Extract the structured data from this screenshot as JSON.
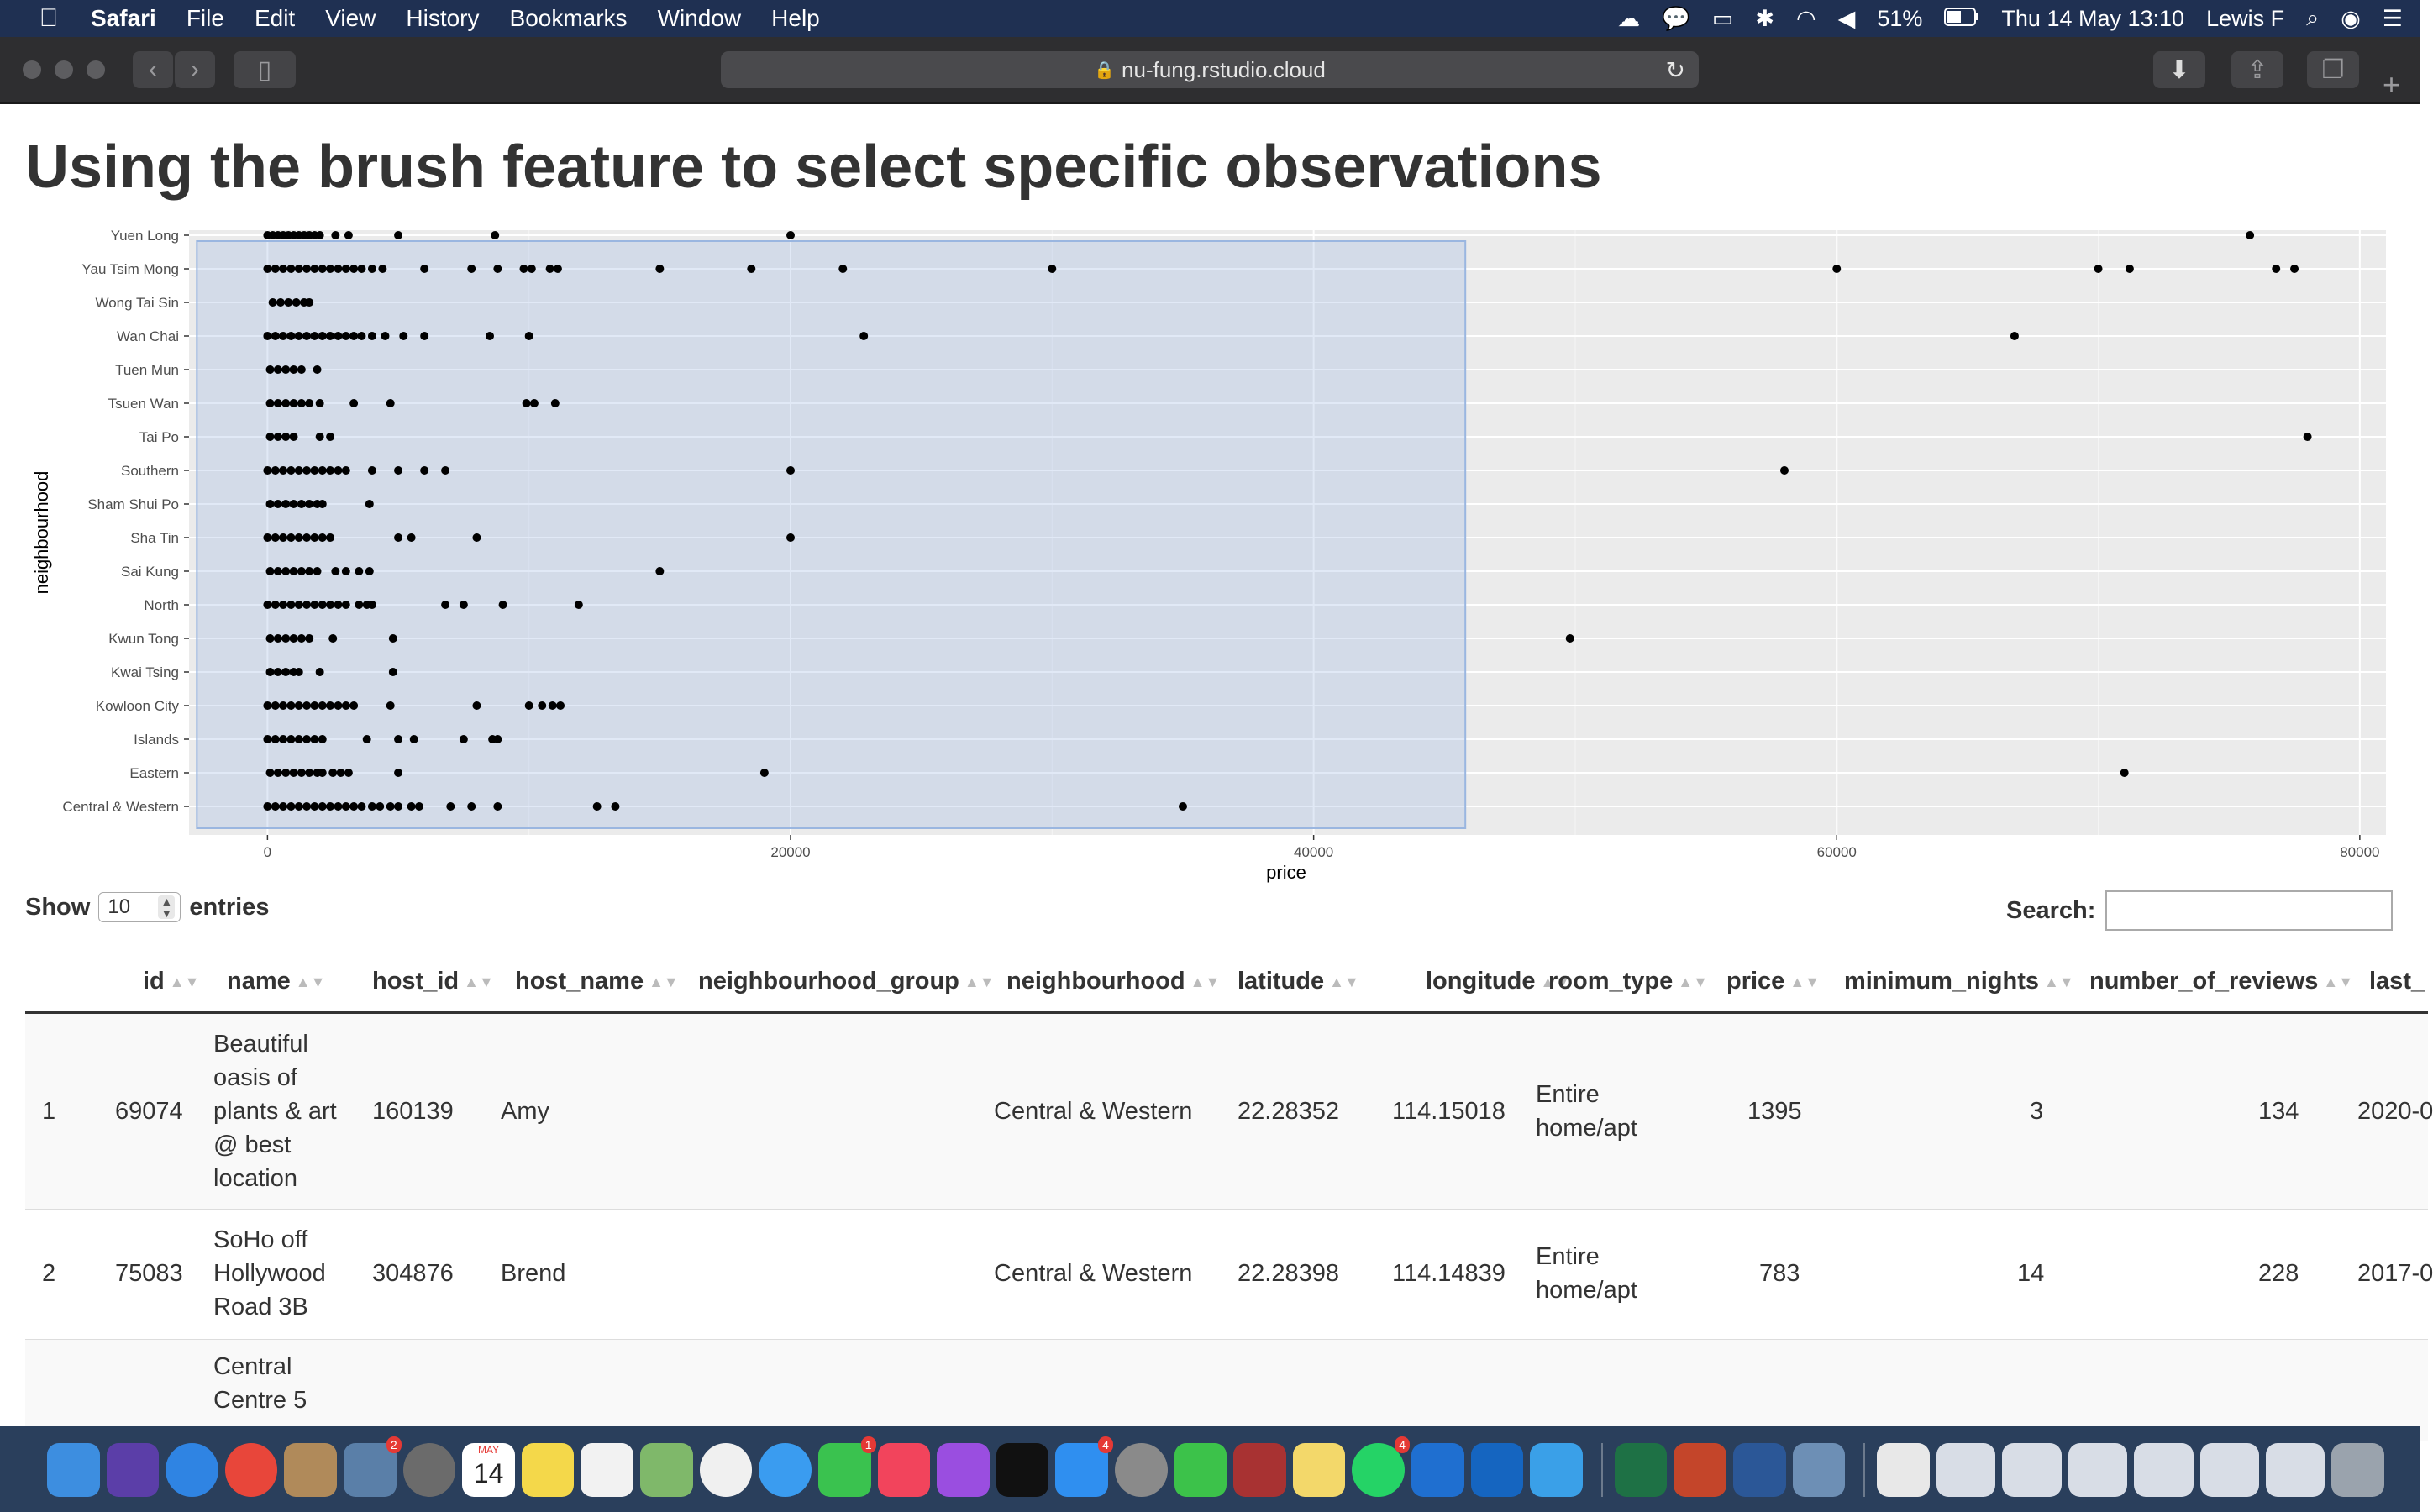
{
  "menubar": {
    "app": "Safari",
    "menus": [
      "File",
      "Edit",
      "View",
      "History",
      "Bookmarks",
      "Window",
      "Help"
    ],
    "battery": "51%",
    "datetime": "Thu 14 May  13:10",
    "user": "Lewis F"
  },
  "browser": {
    "url": "nu-fung.rstudio.cloud"
  },
  "page": {
    "title": "Using the brush feature to select specific observations"
  },
  "chart_data": {
    "type": "scatter",
    "xlabel": "price",
    "ylabel": "neighbourhood",
    "xlim": [
      -3000,
      81000
    ],
    "xticks": [
      0,
      20000,
      40000,
      60000,
      80000
    ],
    "grid": true,
    "brush_selection": {
      "x": [
        -2700,
        45800
      ],
      "y": [
        "Central & Western",
        "Yuen Long"
      ]
    },
    "categories": [
      "Central & Western",
      "Eastern",
      "Islands",
      "Kowloon City",
      "Kwai Tsing",
      "Kwun Tong",
      "North",
      "Sai Kung",
      "Sha Tin",
      "Sham Shui Po",
      "Southern",
      "Tai Po",
      "Tsuen Wan",
      "Tuen Mun",
      "Wan Chai",
      "Wong Tai Sin",
      "Yau Tsim Mong",
      "Yuen Long"
    ],
    "points": {
      "Yuen Long": [
        0,
        200,
        400,
        600,
        800,
        1000,
        1200,
        1400,
        1600,
        1800,
        2000,
        2600,
        3100,
        5000,
        8700,
        20000,
        75800
      ],
      "Yau Tsim Mong": [
        0,
        300,
        600,
        900,
        1200,
        1500,
        1800,
        2100,
        2400,
        2700,
        3000,
        3300,
        3600,
        4000,
        4400,
        6000,
        7800,
        8800,
        9800,
        10100,
        10800,
        11100,
        15000,
        18500,
        22000,
        30000,
        60000,
        70000,
        71200,
        76800,
        77500
      ],
      "Wong Tai Sin": [
        200,
        500,
        800,
        1100,
        1400,
        1600
      ],
      "Wan Chai": [
        0,
        300,
        600,
        900,
        1200,
        1500,
        1800,
        2100,
        2400,
        2700,
        3000,
        3300,
        3600,
        4000,
        4500,
        5200,
        6000,
        8500,
        10000,
        22800,
        66800
      ],
      "Tuen Mun": [
        100,
        400,
        700,
        1000,
        1300,
        1900
      ],
      "Tsuen Wan": [
        100,
        400,
        700,
        1000,
        1300,
        1600,
        2000,
        3300,
        4700,
        9900,
        10200,
        11000
      ],
      "Tai Po": [
        100,
        400,
        700,
        1000,
        2000,
        2400,
        78000
      ],
      "Southern": [
        0,
        300,
        600,
        900,
        1200,
        1500,
        1800,
        2100,
        2400,
        2700,
        3000,
        4000,
        5000,
        6000,
        6800,
        20000,
        58000
      ],
      "Sham Shui Po": [
        100,
        400,
        700,
        1000,
        1300,
        1600,
        1900,
        2100,
        3900
      ],
      "Sha Tin": [
        0,
        300,
        600,
        900,
        1200,
        1500,
        1800,
        2100,
        2400,
        5000,
        5500,
        8000,
        20000
      ],
      "Sai Kung": [
        100,
        400,
        700,
        1000,
        1300,
        1600,
        1900,
        2600,
        3000,
        3500,
        3900,
        15000
      ],
      "North": [
        0,
        300,
        600,
        900,
        1200,
        1500,
        1800,
        2100,
        2400,
        2700,
        3000,
        3500,
        3800,
        4000,
        6800,
        7500,
        9000,
        11900
      ],
      "Kwun Tong": [
        100,
        400,
        700,
        1000,
        1300,
        1600,
        2500,
        4800,
        49800
      ],
      "Kwai Tsing": [
        100,
        400,
        700,
        1000,
        1200,
        2000,
        4800
      ],
      "Kowloon City": [
        0,
        300,
        600,
        900,
        1200,
        1500,
        1800,
        2100,
        2400,
        2700,
        3000,
        3300,
        4700,
        8000,
        10000,
        10500,
        10900,
        11200
      ],
      "Islands": [
        0,
        300,
        600,
        900,
        1200,
        1500,
        1800,
        2100,
        3800,
        5000,
        5600,
        7500,
        8600,
        8800
      ],
      "Eastern": [
        100,
        400,
        700,
        1000,
        1300,
        1600,
        1900,
        2100,
        2500,
        2800,
        3100,
        5000,
        19000,
        71000
      ],
      "Central & Western": [
        0,
        300,
        600,
        900,
        1200,
        1500,
        1800,
        2100,
        2400,
        2700,
        3000,
        3300,
        3600,
        4000,
        4300,
        4700,
        5000,
        5500,
        5800,
        7000,
        7800,
        8800,
        12600,
        13300,
        35000
      ]
    }
  },
  "table": {
    "show_label": "Show",
    "entries_value": "10",
    "entries_label": "entries",
    "search_label": "Search:",
    "columns": [
      "id",
      "name",
      "host_id",
      "host_name",
      "neighbourhood_group",
      "neighbourhood",
      "latitude",
      "longitude",
      "room_type",
      "price",
      "minimum_nights",
      "number_of_reviews",
      "last_"
    ],
    "rows": [
      {
        "index": "1",
        "id": "69074",
        "name": "Beautiful oasis of plants & art @ best location",
        "host_id": "160139",
        "host_name": "Amy",
        "neighbourhood_group": "",
        "neighbourhood": "Central & Western",
        "latitude": "22.28352",
        "longitude": "114.15018",
        "room_type": "Entire home/apt",
        "price": "1395",
        "minimum_nights": "3",
        "number_of_reviews": "134",
        "last_review": "2020-0"
      },
      {
        "index": "2",
        "id": "75083",
        "name": "SoHo off Hollywood Road 3B",
        "host_id": "304876",
        "host_name": "Brend",
        "neighbourhood_group": "",
        "neighbourhood": "Central & Western",
        "latitude": "22.28398",
        "longitude": "114.14839",
        "room_type": "Entire home/apt",
        "price": "783",
        "minimum_nights": "14",
        "number_of_reviews": "228",
        "last_review": "2017-0"
      },
      {
        "index": "",
        "id": "",
        "name": "Central Centre 5",
        "host_id": "",
        "host_name": "",
        "neighbourhood_group": "",
        "neighbourhood": "",
        "latitude": "",
        "longitude": "",
        "room_type": "",
        "price": "",
        "minimum_nights": "",
        "number_of_reviews": "",
        "last_review": ""
      }
    ]
  },
  "dock": {
    "badges": {
      "calendar_date": "14",
      "calendar_month": "MAY",
      "mail": "2",
      "facetime": "1",
      "appstore": "4",
      "whatsapp": "4"
    }
  }
}
